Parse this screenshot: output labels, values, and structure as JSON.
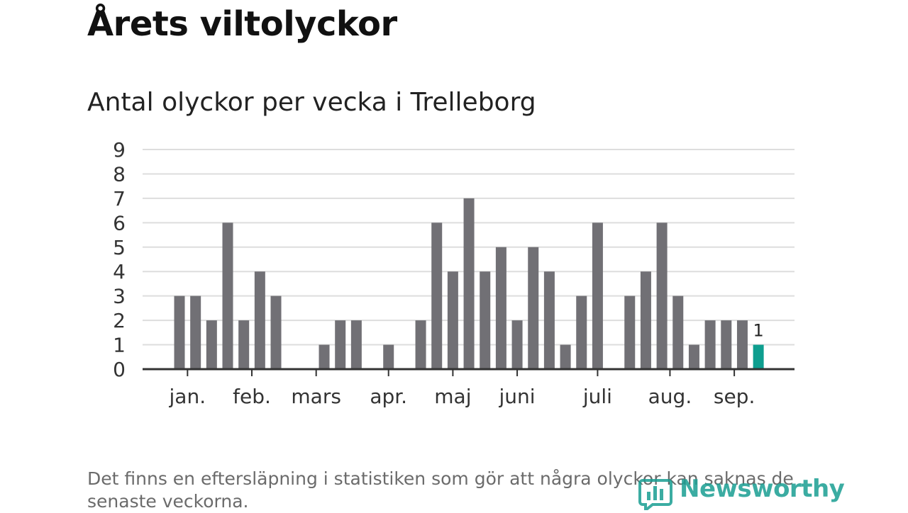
{
  "chart_data": {
    "type": "bar",
    "title": "Årets viltolyckor",
    "subtitle": "Antal olyckor per vecka i Trelleborg",
    "xlabel": "",
    "ylabel": "",
    "ylim": [
      0,
      9
    ],
    "y_ticks": [
      "0",
      "1",
      "2",
      "3",
      "4",
      "5",
      "6",
      "7",
      "8",
      "9"
    ],
    "grid": true,
    "values": [
      3,
      3,
      2,
      6,
      2,
      4,
      3,
      0,
      0,
      1,
      2,
      2,
      0,
      1,
      0,
      2,
      6,
      4,
      7,
      4,
      5,
      2,
      5,
      4,
      1,
      3,
      6,
      0,
      3,
      4,
      6,
      3,
      1,
      2,
      2,
      2,
      1
    ],
    "highlight_index": 36,
    "highlight_label": "1",
    "month_labels": [
      {
        "label": "jan.",
        "week": 0.5
      },
      {
        "label": "feb.",
        "week": 4.5
      },
      {
        "label": "mars",
        "week": 8.5
      },
      {
        "label": "apr.",
        "week": 13.0
      },
      {
        "label": "maj",
        "week": 17.0
      },
      {
        "label": "juni",
        "week": 21.0
      },
      {
        "label": "juli",
        "week": 26.0
      },
      {
        "label": "aug.",
        "week": 30.5
      },
      {
        "label": "sep.",
        "week": 34.5
      }
    ],
    "colors": {
      "bar": "#717075",
      "highlight": "#0e9e8f",
      "grid": "#dddddd",
      "axis": "#333333",
      "tick_text": "#333333"
    }
  },
  "footnote": "Det finns en eftersläpning i statistiken som gör att några olyckor kan saknas de senaste veckorna.",
  "logo": {
    "text": "Newsworthy",
    "icon": "bar-chart-logo-icon",
    "color": "#1a9e92"
  }
}
